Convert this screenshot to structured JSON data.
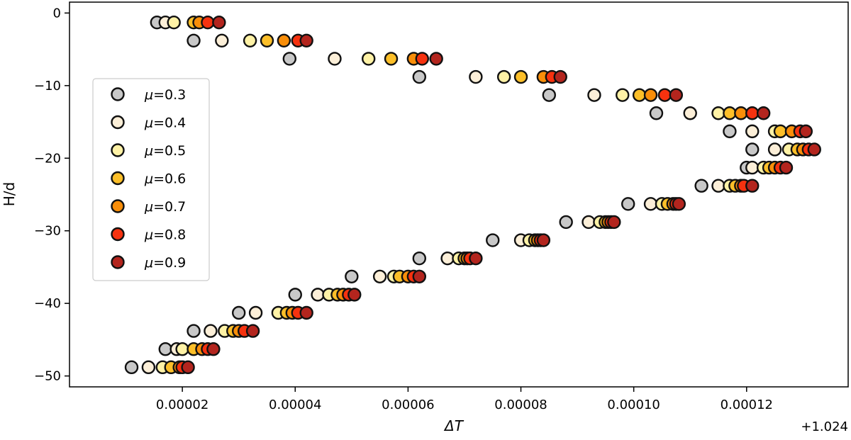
{
  "chart_data": {
    "type": "scatter",
    "title": "",
    "xlabel": "ΔT",
    "ylabel": "H/d",
    "x_offset_label": "+1.024",
    "xlim": [
      0.0,
      0.000138
    ],
    "ylim": [
      -51.5,
      1.5
    ],
    "x_ticks": [
      {
        "value": 2e-05,
        "label": "0.00002"
      },
      {
        "value": 4e-05,
        "label": "0.00004"
      },
      {
        "value": 6e-05,
        "label": "0.00006"
      },
      {
        "value": 8e-05,
        "label": "0.00008"
      },
      {
        "value": 0.0001,
        "label": "0.00010"
      },
      {
        "value": 0.00012,
        "label": "0.00012"
      }
    ],
    "y_ticks": [
      {
        "value": 0,
        "label": "0"
      },
      {
        "value": -10,
        "label": "−10"
      },
      {
        "value": -20,
        "label": "−20"
      },
      {
        "value": -30,
        "label": "−30"
      },
      {
        "value": -40,
        "label": "−40"
      },
      {
        "value": -50,
        "label": "−50"
      }
    ],
    "grid": false,
    "legend_position": "center-left",
    "y_levels": [
      -1.3,
      -3.8,
      -6.3,
      -8.8,
      -11.3,
      -13.8,
      -16.3,
      -18.8,
      -21.3,
      -23.8,
      -26.3,
      -28.8,
      -31.3,
      -33.8,
      -36.3,
      -38.8,
      -41.3,
      -43.8,
      -46.3,
      -48.8
    ],
    "series": [
      {
        "name": "μ=0.3",
        "label_prefix": "μ",
        "label_value": "=0.3",
        "color": "#c8c8c8",
        "x": [
          1.55e-05,
          2.2e-05,
          3.9e-05,
          6.2e-05,
          8.5e-05,
          0.000104,
          0.000117,
          0.000121,
          0.00012,
          0.000112,
          9.9e-05,
          8.8e-05,
          7.5e-05,
          6.2e-05,
          5e-05,
          4e-05,
          3e-05,
          2.2e-05,
          1.7e-05,
          1.1e-05
        ]
      },
      {
        "name": "μ=0.4",
        "label_prefix": "μ",
        "label_value": "=0.4",
        "color": "#fcefd8",
        "x": [
          1.7e-05,
          2.7e-05,
          4.7e-05,
          7.2e-05,
          9.3e-05,
          0.00011,
          0.000121,
          0.000125,
          0.000121,
          0.000115,
          0.000103,
          9.2e-05,
          8e-05,
          6.7e-05,
          5.5e-05,
          4.4e-05,
          3.3e-05,
          2.5e-05,
          1.9e-05,
          1.4e-05
        ]
      },
      {
        "name": "μ=0.5",
        "label_prefix": "μ",
        "label_value": "=0.5",
        "color": "#fff2a6",
        "x": [
          1.85e-05,
          3.2e-05,
          5.3e-05,
          7.7e-05,
          9.8e-05,
          0.000115,
          0.000125,
          0.0001275,
          0.000123,
          0.000117,
          0.000105,
          9.4e-05,
          8.15e-05,
          6.9e-05,
          5.75e-05,
          4.6e-05,
          3.7e-05,
          2.75e-05,
          2e-05,
          1.65e-05
        ]
      },
      {
        "name": "μ=0.6",
        "label_prefix": "μ",
        "label_value": "=0.6",
        "color": "#fcbf29",
        "x": [
          2.2e-05,
          3.5e-05,
          5.7e-05,
          8e-05,
          0.000101,
          0.000117,
          0.000126,
          0.000129,
          0.000124,
          0.000118,
          0.000106,
          9.5e-05,
          8.25e-05,
          7e-05,
          5.85e-05,
          4.75e-05,
          3.85e-05,
          2.9e-05,
          2.2e-05,
          1.8e-05
        ]
      },
      {
        "name": "μ=0.7",
        "label_prefix": "μ",
        "label_value": "=0.7",
        "color": "#f98e09",
        "x": [
          2.3e-05,
          3.8e-05,
          6.1e-05,
          8.4e-05,
          0.000103,
          0.000119,
          0.000128,
          0.00013,
          0.000125,
          0.000119,
          0.000107,
          9.55e-05,
          8.3e-05,
          7.05e-05,
          6e-05,
          4.85e-05,
          3.95e-05,
          3e-05,
          2.35e-05,
          1.95e-05
        ]
      },
      {
        "name": "μ=0.8",
        "label_prefix": "μ",
        "label_value": "=0.8",
        "color": "#f6320f",
        "x": [
          2.45e-05,
          4.05e-05,
          6.25e-05,
          8.55e-05,
          0.0001055,
          0.000121,
          0.0001295,
          0.000131,
          0.000126,
          0.0001195,
          0.0001075,
          9.6e-05,
          8.35e-05,
          7.1e-05,
          6.1e-05,
          4.95e-05,
          4.05e-05,
          3.1e-05,
          2.45e-05,
          2e-05
        ]
      },
      {
        "name": "μ=0.9",
        "label_prefix": "μ",
        "label_value": "=0.9",
        "color": "#b3251e",
        "x": [
          2.65e-05,
          4.2e-05,
          6.5e-05,
          8.7e-05,
          0.0001075,
          0.000123,
          0.0001305,
          0.000132,
          0.000127,
          0.000121,
          0.000108,
          9.65e-05,
          8.4e-05,
          7.2e-05,
          6.2e-05,
          5.05e-05,
          4.2e-05,
          3.25e-05,
          2.55e-05,
          2.1e-05
        ]
      }
    ]
  }
}
